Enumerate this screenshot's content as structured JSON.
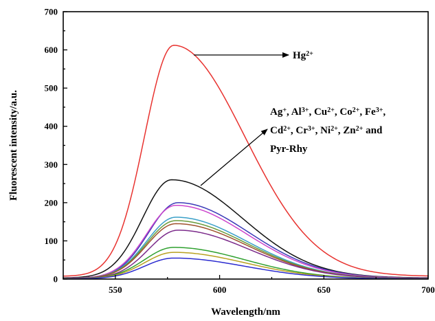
{
  "chart_data": {
    "type": "line",
    "xlabel": "Wavelength/nm",
    "ylabel": "Fluorescent intensity/a.u.",
    "xlim": [
      525,
      700
    ],
    "ylim": [
      0,
      700
    ],
    "xticks": [
      550,
      600,
      650,
      700
    ],
    "yticks": [
      0,
      100,
      200,
      300,
      400,
      500,
      600,
      700
    ],
    "xtick_labels": [
      "550",
      "600",
      "650",
      "700"
    ],
    "ytick_labels": [
      "0",
      "100",
      "200",
      "300",
      "400",
      "500",
      "600",
      "700"
    ],
    "grid": false,
    "legend": "none",
    "series": [
      {
        "color": "#e8322f",
        "peak_x": 578,
        "peak_y": 612
      },
      {
        "color": "#111111",
        "peak_x": 577,
        "peak_y": 260
      },
      {
        "color": "#3b3bb8",
        "peak_x": 580,
        "peak_y": 200
      },
      {
        "color": "#cc44cc",
        "peak_x": 579,
        "peak_y": 193
      },
      {
        "color": "#3aa0c8",
        "peak_x": 579,
        "peak_y": 162
      },
      {
        "color": "#6a9a3a",
        "peak_x": 579,
        "peak_y": 153
      },
      {
        "color": "#a0522d",
        "peak_x": 579,
        "peak_y": 145
      },
      {
        "color": "#7b2a8a",
        "peak_x": 580,
        "peak_y": 128
      },
      {
        "color": "#2ea02e",
        "peak_x": 578,
        "peak_y": 83
      },
      {
        "color": "#b8a020",
        "peak_x": 578,
        "peak_y": 70
      },
      {
        "color": "#2b2bd0",
        "peak_x": 578,
        "peak_y": 55
      }
    ],
    "annotations": [
      {
        "lines": [
          [
            {
              "t": "Hg"
            },
            {
              "t": "2+",
              "sup": true
            }
          ]
        ]
      },
      {
        "lines": [
          [
            {
              "t": "Ag"
            },
            {
              "t": "+",
              "sup": true
            },
            {
              "t": ", Al"
            },
            {
              "t": "3+",
              "sup": true
            },
            {
              "t": ", Cu"
            },
            {
              "t": "2+",
              "sup": true
            },
            {
              "t": ", Co"
            },
            {
              "t": "2+",
              "sup": true
            },
            {
              "t": ", Fe"
            },
            {
              "t": "3+",
              "sup": true
            },
            {
              "t": ","
            }
          ],
          [
            {
              "t": "Cd"
            },
            {
              "t": "2+",
              "sup": true
            },
            {
              "t": ", Cr"
            },
            {
              "t": "3+",
              "sup": true
            },
            {
              "t": ", Ni"
            },
            {
              "t": "2+",
              "sup": true
            },
            {
              "t": ", Zn"
            },
            {
              "t": "2+",
              "sup": true
            },
            {
              "t": " and"
            }
          ],
          [
            {
              "t": "Pyr-Rhy"
            }
          ]
        ]
      }
    ]
  }
}
